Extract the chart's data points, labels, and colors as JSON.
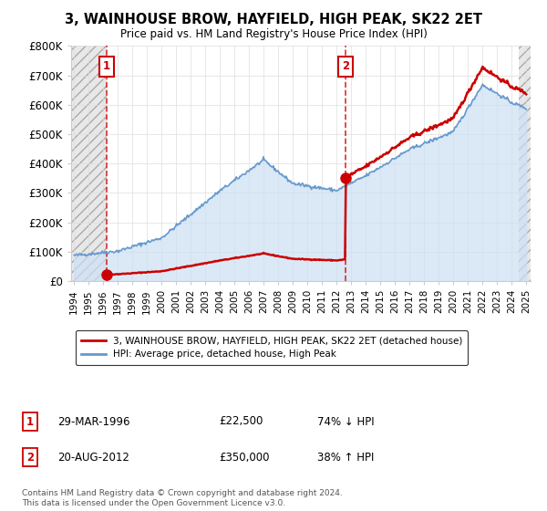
{
  "title": "3, WAINHOUSE BROW, HAYFIELD, HIGH PEAK, SK22 2ET",
  "subtitle": "Price paid vs. HM Land Registry's House Price Index (HPI)",
  "sale1_year": 1996.25,
  "sale1_price": 22500,
  "sale1_label": "1",
  "sale2_year": 2012.63,
  "sale2_price": 350000,
  "sale2_label": "2",
  "legend_line1": "3, WAINHOUSE BROW, HAYFIELD, HIGH PEAK, SK22 2ET (detached house)",
  "legend_line2": "HPI: Average price, detached house, High Peak",
  "table_row1_num": "1",
  "table_row1_date": "29-MAR-1996",
  "table_row1_price": "£22,500",
  "table_row1_hpi": "74% ↓ HPI",
  "table_row2_num": "2",
  "table_row2_date": "20-AUG-2012",
  "table_row2_price": "£350,000",
  "table_row2_hpi": "38% ↑ HPI",
  "footer": "Contains HM Land Registry data © Crown copyright and database right 2024.\nThis data is licensed under the Open Government Licence v3.0.",
  "hpi_color": "#6699cc",
  "hpi_fill_color": "#cce0f5",
  "price_color": "#cc0000",
  "ylim_max": 800000,
  "xmin": 1993.8,
  "xmax": 2025.3
}
